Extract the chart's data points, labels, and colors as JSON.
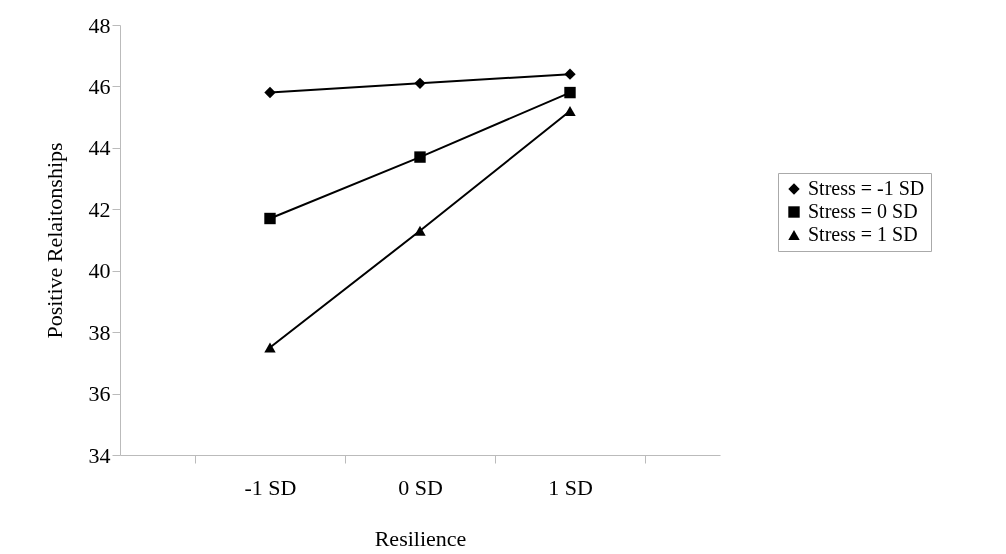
{
  "chart_data": {
    "type": "line",
    "xlabel": "Resilience",
    "ylabel": "Positive Relaitonships",
    "categories": [
      "-1 SD",
      "0 SD",
      "1 SD"
    ],
    "series": [
      {
        "name": "Stress = -1 SD",
        "color": "#000000",
        "marker": "diamond",
        "values": [
          45.8,
          46.1,
          46.4
        ]
      },
      {
        "name": "Stress = 0 SD",
        "color": "#000000",
        "marker": "square",
        "values": [
          41.7,
          43.7,
          45.8
        ]
      },
      {
        "name": "Stress = 1 SD",
        "color": "#000000",
        "marker": "triangle",
        "values": [
          37.5,
          41.3,
          45.2
        ]
      }
    ],
    "ylim": [
      34,
      48
    ],
    "yticks": [
      34,
      36,
      38,
      40,
      42,
      44,
      46,
      48
    ],
    "grid": false,
    "legend": "right",
    "line_style": "solid"
  }
}
